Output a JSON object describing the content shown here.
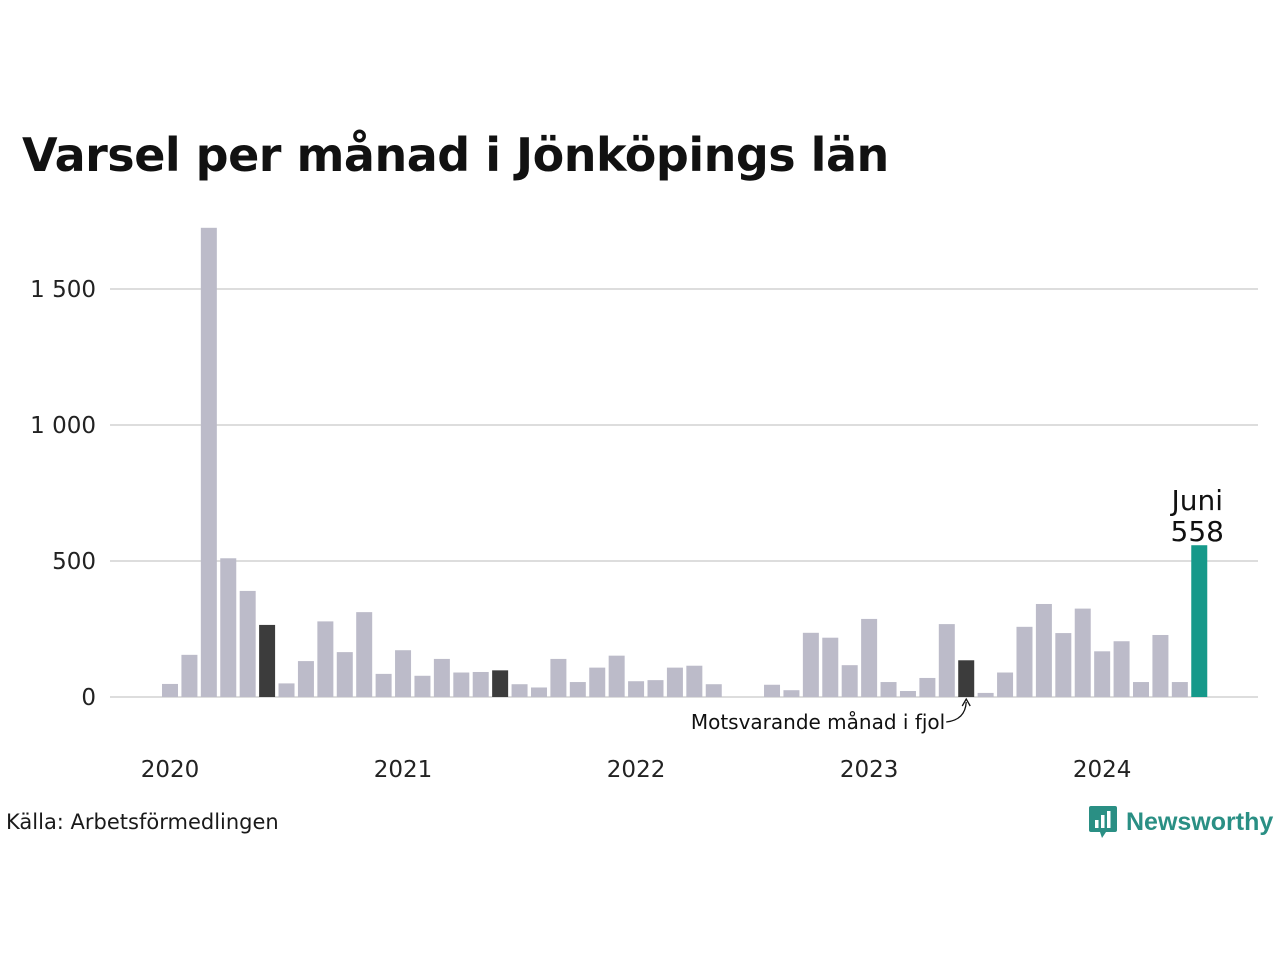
{
  "title": "Varsel per månad i Jönköpings län",
  "source": "Källa: Arbetsförmedlingen",
  "brand": {
    "name": "Newsworthy",
    "color": "#2a8f84",
    "icon": "bar-chart-speech-bubble-icon"
  },
  "colors": {
    "default": "#bcbbc9",
    "comparison": "#3c3c3c",
    "highlight": "#16998a",
    "grid": "#dddddd"
  },
  "chart_data": {
    "type": "bar",
    "title": "Varsel per månad i Jönköpings län",
    "xlabel": "",
    "ylabel": "",
    "ylim": [
      0,
      1750
    ],
    "yticks": [
      0,
      500,
      1000,
      1500
    ],
    "ytick_labels": [
      "0",
      "500",
      "1 000",
      "1 500"
    ],
    "xtick_labels": [
      {
        "label": "2020",
        "index": 0
      },
      {
        "label": "2021",
        "index": 12
      },
      {
        "label": "2022",
        "index": 24
      },
      {
        "label": "2023",
        "index": 36
      },
      {
        "label": "2024",
        "index": 48
      }
    ],
    "grid": true,
    "categories": [
      "2020-01",
      "2020-02",
      "2020-03",
      "2020-04",
      "2020-05",
      "2020-06",
      "2020-07",
      "2020-08",
      "2020-09",
      "2020-10",
      "2020-11",
      "2020-12",
      "2021-01",
      "2021-02",
      "2021-03",
      "2021-04",
      "2021-05",
      "2021-06",
      "2021-07",
      "2021-08",
      "2021-09",
      "2021-10",
      "2021-11",
      "2021-12",
      "2022-01",
      "2022-02",
      "2022-03",
      "2022-04",
      "2022-05",
      "2022-06",
      "2022-07",
      "2022-08",
      "2022-09",
      "2022-10",
      "2022-11",
      "2022-12",
      "2023-01",
      "2023-02",
      "2023-03",
      "2023-04",
      "2023-05",
      "2023-06",
      "2023-07",
      "2023-08",
      "2023-09",
      "2023-10",
      "2023-11",
      "2023-12",
      "2024-01",
      "2024-02",
      "2024-03",
      "2024-04",
      "2024-05",
      "2024-06"
    ],
    "values": [
      48,
      155,
      1725,
      510,
      390,
      265,
      50,
      132,
      278,
      165,
      312,
      85,
      172,
      78,
      140,
      90,
      92,
      98,
      47,
      35,
      140,
      55,
      108,
      152,
      58,
      62,
      108,
      115,
      47,
      0,
      0,
      45,
      25,
      236,
      218,
      117,
      287,
      55,
      22,
      70,
      268,
      135,
      15,
      90,
      258,
      342,
      235,
      325,
      168,
      205,
      55,
      228,
      55,
      558
    ],
    "comparison_indices": [
      5,
      17,
      41
    ],
    "highlight_index": 53,
    "highlight_label": "Juni",
    "highlight_value_label": "558",
    "annotation": "Motsvarande månad i fjol"
  }
}
